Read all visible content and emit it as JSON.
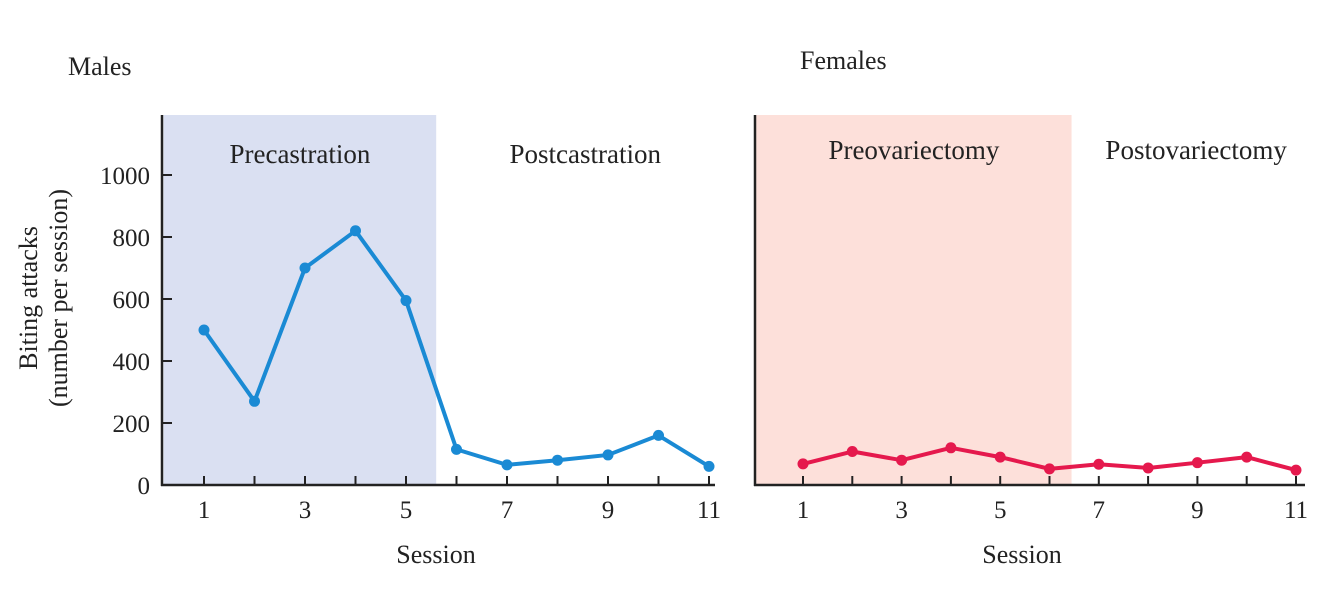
{
  "chart_data": [
    {
      "type": "line",
      "title": "Males",
      "xlabel": "Session",
      "ylabel": [
        "Biting attacks",
        "(number per session)"
      ],
      "x": [
        1,
        2,
        3,
        4,
        5,
        6,
        7,
        8,
        9,
        10,
        11
      ],
      "xticks": [
        "1",
        "3",
        "5",
        "7",
        "9",
        "11"
      ],
      "yticks": [
        "0",
        "200",
        "400",
        "600",
        "800",
        "1000"
      ],
      "ylim": [
        0,
        1200
      ],
      "series": [
        {
          "values": [
            500,
            270,
            700,
            820,
            595,
            115,
            65,
            80,
            97,
            160,
            60
          ],
          "color": "#1a8ad4"
        }
      ],
      "regions": [
        {
          "label": "Precastration",
          "from": 0.2,
          "to": 5.6,
          "color": "#dae0f2"
        },
        {
          "label": "Postcastration",
          "from": 5.6,
          "to": 11.5,
          "color": "#ffffff"
        }
      ],
      "grid": false
    },
    {
      "type": "line",
      "title": "Females",
      "xlabel": "Session",
      "x": [
        1,
        2,
        3,
        4,
        5,
        6,
        7,
        8,
        9,
        10,
        11
      ],
      "xticks": [
        "1",
        "3",
        "5",
        "7",
        "9",
        "11"
      ],
      "ylim": [
        0,
        1200
      ],
      "series": [
        {
          "values": [
            68,
            108,
            80,
            120,
            90,
            52,
            67,
            55,
            72,
            90,
            48
          ],
          "color": "#e5194d"
        }
      ],
      "regions": [
        {
          "label": "Preovariectomy",
          "from": 0.05,
          "to": 6.45,
          "color": "#fde0da"
        },
        {
          "label": "Postovariectomy",
          "from": 6.45,
          "to": 11.5,
          "color": "#ffffff"
        }
      ],
      "grid": false
    }
  ]
}
